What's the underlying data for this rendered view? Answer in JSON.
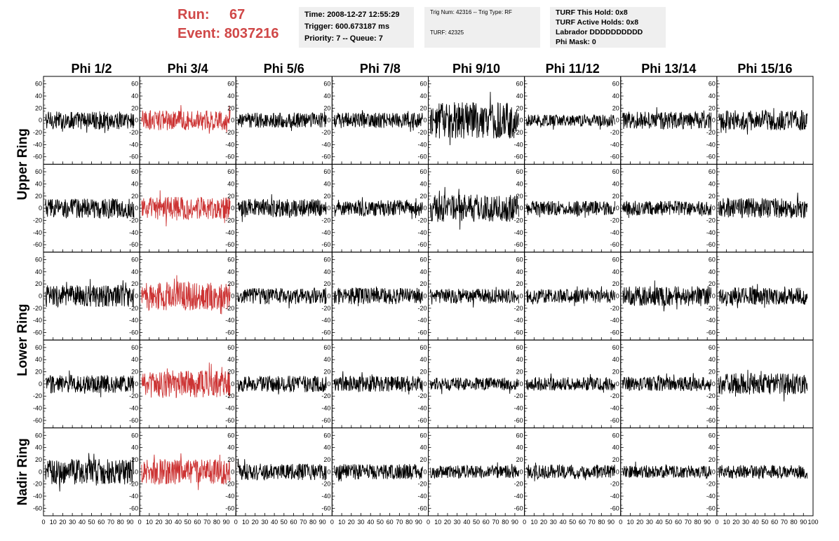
{
  "header": {
    "run_label": "Run:",
    "run_value": "67",
    "event_label": "Event:",
    "event_value": "8037216",
    "colors": {
      "run_text": "#d04848",
      "box_bg": "#efefef"
    }
  },
  "info_box_1": {
    "line1": "Time: 2008-12-27 12:55:29",
    "line2": "Trigger: 600.673187 ms",
    "line3": "Priority: 7 -- Queue: 7"
  },
  "info_box_2": {
    "line1": "Trig Num: 42316 -- Trig Type: RF",
    "line2": "TURF: 42325"
  },
  "info_box_3": {
    "line1": "TURF This Hold: 0x8",
    "line2": "TURF Active Holds: 0x8",
    "line3": "Labrador DDDDDDDDDD",
    "line4": "Phi Mask: 0"
  },
  "chart_data": {
    "type": "line",
    "columns": [
      "Phi 1/2",
      "Phi 3/4",
      "Phi 5/6",
      "Phi 7/8",
      "Phi 9/10",
      "Phi 11/12",
      "Phi 13/14",
      "Phi 15/16"
    ],
    "rings": [
      "Upper Ring",
      "Lower Ring",
      "Nadir Ring"
    ],
    "row_groups": [
      {
        "ring": "Upper Ring",
        "rows": [
          0,
          1
        ]
      },
      {
        "ring": "Lower Ring",
        "rows": [
          2,
          3
        ]
      },
      {
        "ring": "Nadir Ring",
        "rows": [
          4
        ]
      }
    ],
    "rows": 5,
    "xlim": [
      0,
      100
    ],
    "ylim": [
      -70,
      70
    ],
    "x_ticks": [
      0,
      10,
      20,
      30,
      40,
      50,
      60,
      70,
      80,
      90,
      100
    ],
    "x_tick_labels": [
      "0",
      "10",
      "20",
      "30",
      "40",
      "50",
      "60",
      "70",
      "80",
      "90",
      "100"
    ],
    "y_ticks": [
      -60,
      -40,
      -20,
      0,
      20,
      40,
      60
    ],
    "y_tick_labels": [
      "-60",
      "-40",
      "-20",
      "0",
      "20",
      "40",
      "60"
    ],
    "highlight_column": 1,
    "colors": {
      "trace": "#000000",
      "highlight_trace": "#cc3333",
      "frame": "#000000"
    },
    "grid": false,
    "samples_per_trace": 260,
    "trace_x_range": [
      2,
      94
    ],
    "amplitude_ranges": [
      [
        20,
        22,
        17,
        17,
        40,
        13,
        19,
        22
      ],
      [
        22,
        25,
        20,
        18,
        30,
        16,
        16,
        22
      ],
      [
        24,
        32,
        18,
        18,
        16,
        15,
        22,
        19
      ],
      [
        20,
        30,
        18,
        18,
        14,
        15,
        16,
        24
      ],
      [
        28,
        28,
        18,
        17,
        14,
        16,
        14,
        15
      ]
    ]
  }
}
